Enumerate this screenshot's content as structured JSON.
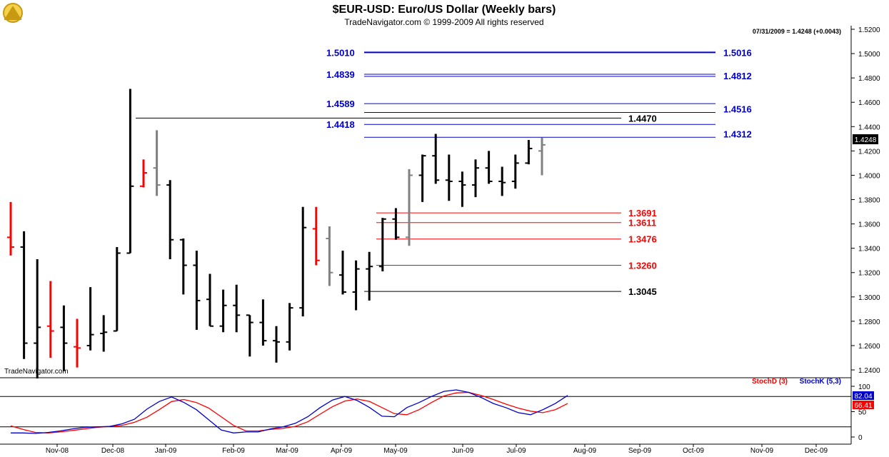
{
  "chart_data": {
    "type": "ohlc",
    "title": "$EUR-USD:  Euro/US Dollar  (Weekly bars)",
    "subtitle": "TradeNavigator.com © 1999-2009 All rights reserved",
    "last_quote": "07/31/2009 = 1.4248 (+0.0043)",
    "last_value": "1.4248",
    "watermark": "TradeNavigator.com",
    "y_ticks": [
      "1.5200",
      "1.5000",
      "1.4800",
      "1.4600",
      "1.4400",
      "1.4200",
      "1.4000",
      "1.3800",
      "1.3600",
      "1.3400",
      "1.3200",
      "1.3000",
      "1.2800",
      "1.2600",
      "1.2400"
    ],
    "ylim": [
      1.23,
      1.52
    ],
    "x_ticks": [
      "Nov-08",
      "Dec-08",
      "Jan-09",
      "Feb-09",
      "Mar-09",
      "Apr-09",
      "May-09",
      "Jun-09",
      "Jul-09",
      "Aug-09",
      "Sep-09",
      "Oct-09",
      "Nov-09",
      "Dec-09"
    ],
    "colors": {
      "up": "#000000",
      "down": "#000000",
      "highlight_red": "#ff0000",
      "highlight_gray": "#808080",
      "blue": "#0000cc",
      "red": "#ff0000"
    },
    "bars": [
      {
        "o": 1.349,
        "h": 1.378,
        "l": 1.334,
        "c": 1.341,
        "color": "red"
      },
      {
        "o": 1.341,
        "h": 1.354,
        "l": 1.249,
        "c": 1.262,
        "color": "black"
      },
      {
        "o": 1.262,
        "h": 1.331,
        "l": 1.233,
        "c": 1.275,
        "color": "black"
      },
      {
        "o": 1.276,
        "h": 1.313,
        "l": 1.25,
        "c": 1.272,
        "color": "red"
      },
      {
        "o": 1.275,
        "h": 1.293,
        "l": 1.239,
        "c": 1.262,
        "color": "black"
      },
      {
        "o": 1.259,
        "h": 1.282,
        "l": 1.242,
        "c": 1.258,
        "color": "red"
      },
      {
        "o": 1.26,
        "h": 1.308,
        "l": 1.256,
        "c": 1.269,
        "color": "black"
      },
      {
        "o": 1.27,
        "h": 1.285,
        "l": 1.255,
        "c": 1.271,
        "color": "black"
      },
      {
        "o": 1.272,
        "h": 1.341,
        "l": 1.272,
        "c": 1.336,
        "color": "black"
      },
      {
        "o": 1.336,
        "h": 1.471,
        "l": 1.336,
        "c": 1.391,
        "color": "black"
      },
      {
        "o": 1.391,
        "h": 1.413,
        "l": 1.39,
        "c": 1.402,
        "color": "red"
      },
      {
        "o": 1.406,
        "h": 1.437,
        "l": 1.383,
        "c": 1.392,
        "color": "gray"
      },
      {
        "o": 1.392,
        "h": 1.396,
        "l": 1.331,
        "c": 1.347,
        "color": "black"
      },
      {
        "o": 1.347,
        "h": 1.348,
        "l": 1.302,
        "c": 1.326,
        "color": "black"
      },
      {
        "o": 1.326,
        "h": 1.338,
        "l": 1.273,
        "c": 1.297,
        "color": "black"
      },
      {
        "o": 1.298,
        "h": 1.319,
        "l": 1.276,
        "c": 1.276,
        "color": "black"
      },
      {
        "o": 1.276,
        "h": 1.306,
        "l": 1.271,
        "c": 1.293,
        "color": "black"
      },
      {
        "o": 1.293,
        "h": 1.31,
        "l": 1.271,
        "c": 1.285,
        "color": "black"
      },
      {
        "o": 1.285,
        "h": 1.285,
        "l": 1.251,
        "c": 1.279,
        "color": "black"
      },
      {
        "o": 1.279,
        "h": 1.298,
        "l": 1.26,
        "c": 1.264,
        "color": "black"
      },
      {
        "o": 1.264,
        "h": 1.276,
        "l": 1.246,
        "c": 1.263,
        "color": "black"
      },
      {
        "o": 1.263,
        "h": 1.295,
        "l": 1.256,
        "c": 1.291,
        "color": "black"
      },
      {
        "o": 1.291,
        "h": 1.374,
        "l": 1.284,
        "c": 1.357,
        "color": "black"
      },
      {
        "o": 1.356,
        "h": 1.374,
        "l": 1.326,
        "c": 1.33,
        "color": "red"
      },
      {
        "o": 1.348,
        "h": 1.358,
        "l": 1.309,
        "c": 1.32,
        "color": "gray"
      },
      {
        "o": 1.318,
        "h": 1.338,
        "l": 1.302,
        "c": 1.304,
        "color": "black"
      },
      {
        "o": 1.304,
        "h": 1.33,
        "l": 1.289,
        "c": 1.323,
        "color": "black"
      },
      {
        "o": 1.323,
        "h": 1.337,
        "l": 1.297,
        "c": 1.325,
        "color": "black"
      },
      {
        "o": 1.325,
        "h": 1.365,
        "l": 1.321,
        "c": 1.364,
        "color": "black"
      },
      {
        "o": 1.364,
        "h": 1.373,
        "l": 1.347,
        "c": 1.349,
        "color": "black"
      },
      {
        "o": 1.349,
        "h": 1.405,
        "l": 1.342,
        "c": 1.4,
        "color": "gray"
      },
      {
        "o": 1.4,
        "h": 1.417,
        "l": 1.378,
        "c": 1.416,
        "color": "black"
      },
      {
        "o": 1.416,
        "h": 1.434,
        "l": 1.393,
        "c": 1.396,
        "color": "black"
      },
      {
        "o": 1.396,
        "h": 1.417,
        "l": 1.379,
        "c": 1.395,
        "color": "black"
      },
      {
        "o": 1.395,
        "h": 1.403,
        "l": 1.374,
        "c": 1.392,
        "color": "black"
      },
      {
        "o": 1.392,
        "h": 1.413,
        "l": 1.382,
        "c": 1.406,
        "color": "black"
      },
      {
        "o": 1.406,
        "h": 1.42,
        "l": 1.393,
        "c": 1.395,
        "color": "black"
      },
      {
        "o": 1.395,
        "h": 1.407,
        "l": 1.383,
        "c": 1.394,
        "color": "black"
      },
      {
        "o": 1.395,
        "h": 1.417,
        "l": 1.389,
        "c": 1.41,
        "color": "black"
      },
      {
        "o": 1.41,
        "h": 1.429,
        "l": 1.409,
        "c": 1.422,
        "color": "black"
      },
      {
        "o": 1.42,
        "h": 1.431,
        "l": 1.4,
        "c": 1.425,
        "color": "gray"
      }
    ],
    "levels": [
      {
        "left_label": "1.5010",
        "value": 1.501,
        "right_label": "1.5016",
        "color": "blue"
      },
      {
        "left_label": "1.4839",
        "value": 1.483,
        "right_label": "1.4812",
        "color": "blue"
      },
      {
        "left_label": "1.4589",
        "value": 1.4589,
        "right_label": "",
        "color": "blue"
      },
      {
        "left_label": "",
        "value": 1.4516,
        "right_label": "1.4516",
        "color": "blue"
      },
      {
        "left_label": "1.4418",
        "value": 1.4418,
        "right_label": "",
        "color": "blue"
      },
      {
        "left_label": "",
        "value": 1.4312,
        "right_label": "1.4312",
        "color": "blue"
      },
      {
        "left_label": "",
        "value": 1.447,
        "right_label": "1.4470",
        "color": "black"
      },
      {
        "left_label": "",
        "value": 1.3691,
        "right_label": "1.3691",
        "color": "red"
      },
      {
        "left_label": "",
        "value": 1.3611,
        "right_label": "1.3611",
        "color": "red"
      },
      {
        "left_label": "",
        "value": 1.3476,
        "right_label": "1.3476",
        "color": "red"
      },
      {
        "left_label": "",
        "value": 1.326,
        "right_label": "1.3260",
        "color": "red"
      },
      {
        "left_label": "",
        "value": 1.3045,
        "right_label": "1.3045",
        "color": "black"
      }
    ],
    "stoch": {
      "legend_d": "StochD (3)",
      "legend_k": "StochK (5,3)",
      "y_ticks": [
        "100",
        "50",
        "0"
      ],
      "upper_band": 80,
      "lower_band": 20,
      "last_k": "82.04",
      "last_d": "66.41",
      "stochK": [
        8,
        8,
        7,
        9,
        12,
        16,
        19,
        20,
        21,
        26,
        35,
        55,
        70,
        79,
        68,
        54,
        34,
        14,
        8,
        10,
        10,
        16,
        20,
        27,
        40,
        58,
        73,
        80,
        72,
        58,
        41,
        40,
        58,
        68,
        80,
        90,
        93,
        88,
        78,
        66,
        58,
        48,
        44,
        54,
        66,
        82
      ],
      "stochD": [
        22,
        15,
        9,
        8,
        10,
        13,
        16,
        19,
        21,
        23,
        29,
        39,
        54,
        70,
        74,
        68,
        57,
        40,
        23,
        12,
        12,
        15,
        17,
        21,
        30,
        45,
        60,
        71,
        75,
        70,
        58,
        46,
        44,
        54,
        68,
        81,
        87,
        88,
        82,
        74,
        65,
        57,
        51,
        48,
        54,
        66
      ]
    }
  }
}
